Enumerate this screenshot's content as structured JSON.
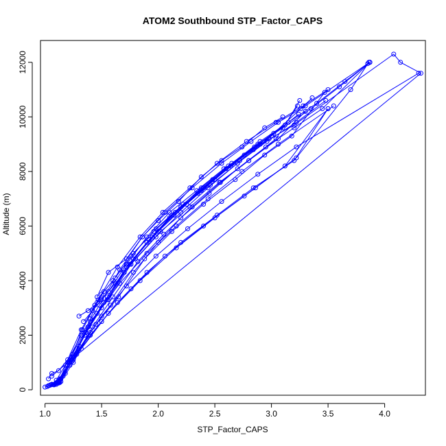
{
  "chart_data": {
    "type": "line",
    "title": "ATOM2 Southbound STP_Factor_CAPS",
    "xlabel": "STP_Factor_CAPS",
    "ylabel": "Altitude (m)",
    "xlim": [
      0.96,
      4.36
    ],
    "ylim": [
      -200,
      12800
    ],
    "x_ticks": [
      1.0,
      1.5,
      2.0,
      2.5,
      3.0,
      3.5,
      4.0
    ],
    "x_tick_labels": [
      "1.0",
      "1.5",
      "2.0",
      "2.5",
      "3.0",
      "3.5",
      "4.0"
    ],
    "y_ticks": [
      0,
      2000,
      4000,
      6000,
      8000,
      10000,
      12000
    ],
    "y_tick_labels": [
      "0",
      "2000",
      "4000",
      "6000",
      "8000",
      "10000",
      "12000"
    ],
    "grid": false,
    "legend": "none",
    "color": "#0000ff",
    "marker": "open-circle",
    "series": [
      {
        "x": [
          1.0,
          1.05,
          1.12,
          1.2,
          1.35,
          1.5,
          1.7,
          1.9,
          2.1,
          2.35,
          2.6,
          2.85,
          3.1,
          3.35,
          3.6,
          3.87
        ],
        "y": [
          100,
          180,
          300,
          900,
          2000,
          3000,
          4300,
          5400,
          6300,
          7200,
          8100,
          8900,
          9600,
          10300,
          11100,
          12000
        ]
      },
      {
        "x": [
          1.03,
          1.08,
          1.13,
          1.23,
          1.38,
          1.55,
          1.75,
          1.95,
          2.15,
          2.4,
          2.65,
          2.9,
          3.15,
          3.4,
          3.65,
          3.87
        ],
        "y": [
          150,
          200,
          400,
          1100,
          2300,
          3300,
          4600,
          5600,
          6500,
          7400,
          8300,
          9100,
          9800,
          10500,
          11300,
          12000
        ]
      },
      {
        "x": [
          1.02,
          1.06,
          1.1,
          1.18,
          1.32,
          1.48,
          1.66,
          1.86,
          2.06,
          2.3,
          2.56,
          2.82,
          3.06,
          3.3,
          3.85
        ],
        "y": [
          120,
          200,
          350,
          900,
          2000,
          3100,
          4400,
          5600,
          6500,
          7400,
          8300,
          9100,
          9800,
          10400,
          11950
        ]
      },
      {
        "x": [
          1.08,
          1.11,
          1.14,
          1.25,
          1.4,
          1.58,
          1.78,
          2.0,
          2.2,
          2.45,
          2.7,
          2.95,
          3.2,
          3.45,
          3.87
        ],
        "y": [
          200,
          260,
          300,
          1000,
          2100,
          3100,
          4300,
          5400,
          6300,
          7200,
          8100,
          8900,
          9600,
          10300,
          12000
        ]
      },
      {
        "x": [
          1.05,
          1.09,
          1.13,
          1.21,
          1.33,
          1.47,
          1.64,
          1.84,
          2.04,
          2.28,
          2.52,
          2.78,
          3.04,
          3.28,
          3.5
        ],
        "y": [
          180,
          220,
          350,
          1000,
          2200,
          3300,
          4500,
          5600,
          6500,
          7400,
          8300,
          9100,
          9800,
          10400,
          11000
        ]
      },
      {
        "x": [
          1.06,
          1.12,
          1.22,
          1.38,
          1.55,
          1.78,
          2.0,
          2.25,
          2.5,
          2.76,
          3.02,
          3.26,
          3.36
        ],
        "y": [
          200,
          250,
          1000,
          2300,
          3400,
          4800,
          5800,
          6800,
          7700,
          8600,
          9400,
          10300,
          10700
        ]
      },
      {
        "x": [
          1.04,
          1.1,
          1.2,
          1.36,
          1.52,
          1.72,
          1.92,
          2.12,
          2.38,
          2.62,
          2.88,
          3.12,
          3.25
        ],
        "y": [
          160,
          240,
          900,
          2100,
          3200,
          4500,
          5500,
          6400,
          7400,
          8200,
          9000,
          9700,
          10600
        ]
      },
      {
        "x": [
          1.09,
          1.13,
          1.24,
          1.42,
          1.6,
          1.82,
          2.05,
          2.3,
          2.55,
          2.8,
          3.04,
          3.23
        ],
        "y": [
          220,
          260,
          1050,
          2300,
          3400,
          4700,
          5700,
          6700,
          7600,
          8400,
          9200,
          10400
        ]
      },
      {
        "x": [
          1.07,
          1.12,
          1.25,
          1.45,
          1.65,
          1.88,
          2.12,
          2.4,
          2.68,
          2.94,
          3.18,
          3.47
        ],
        "y": [
          190,
          280,
          1100,
          2400,
          3400,
          4800,
          5800,
          6800,
          7700,
          8600,
          9300,
          10900
        ]
      },
      {
        "x": [
          1.1,
          1.12,
          1.22,
          1.36,
          1.52,
          1.72,
          1.92,
          2.14,
          2.38,
          2.64,
          2.9,
          3.2,
          4.08,
          4.14,
          4.32,
          1.2,
          1.3
        ],
        "y": [
          200,
          250,
          900,
          2100,
          3200,
          4500,
          5500,
          6400,
          7300,
          8200,
          9000,
          9700,
          12300,
          12000,
          11600,
          1000,
          1600
        ]
      },
      {
        "x": [
          1.12,
          1.18,
          1.3,
          1.46,
          1.66,
          1.9,
          2.16,
          2.44,
          2.74,
          3.06,
          3.55
        ],
        "y": [
          250,
          600,
          1600,
          2800,
          3900,
          5000,
          6000,
          7000,
          8000,
          9000,
          10400
        ]
      },
      {
        "x": [
          1.08,
          1.14,
          1.28,
          1.5,
          1.76,
          2.06,
          2.4,
          2.76,
          3.12,
          3.5
        ],
        "y": [
          180,
          400,
          1300,
          2500,
          3700,
          4900,
          6000,
          7100,
          8200,
          10300
        ]
      },
      {
        "x": [
          1.13,
          1.16,
          1.3,
          1.5,
          1.72,
          1.98,
          2.26,
          2.56,
          2.88,
          3.22,
          4.3
        ],
        "y": [
          300,
          500,
          1500,
          2700,
          3800,
          4900,
          5900,
          6900,
          7900,
          8900,
          11600
        ]
      },
      {
        "x": [
          1.06,
          1.2,
          1.4,
          1.64,
          1.9,
          2.2,
          2.52,
          2.84,
          3.2,
          3.5
        ],
        "y": [
          500,
          1000,
          2000,
          3200,
          4300,
          5400,
          6400,
          7400,
          8400,
          10300
        ]
      },
      {
        "x": [
          1.03,
          1.06,
          1.12,
          1.24,
          1.4,
          1.56,
          1.76,
          1.98,
          2.2,
          2.44,
          2.7,
          2.96,
          3.22,
          3.48
        ],
        "y": [
          400,
          600,
          700,
          1300,
          2500,
          3300,
          4600,
          5600,
          6500,
          7400,
          8300,
          9100,
          9800,
          10600
        ]
      },
      {
        "x": [
          1.1,
          1.14,
          1.32,
          1.56,
          1.84,
          2.16,
          2.5,
          2.86,
          3.22,
          3.7,
          3.86
        ],
        "y": [
          260,
          400,
          1500,
          2800,
          4000,
          5200,
          6300,
          7400,
          8500,
          11000,
          12000
        ]
      },
      {
        "x": [
          1.13,
          1.2,
          1.32,
          1.44,
          1.56,
          1.72,
          1.9,
          2.1,
          2.34,
          2.58,
          2.84
        ],
        "y": [
          350,
          1100,
          2200,
          3100,
          3600,
          4600,
          5600,
          6500,
          7300,
          8100,
          8800
        ]
      },
      {
        "x": [
          1.46,
          1.56,
          1.72,
          1.86,
          2.0,
          2.18,
          2.38,
          2.56,
          2.74,
          2.94,
          3.1
        ],
        "y": [
          3400,
          4300,
          4800,
          5600,
          6200,
          6900,
          7800,
          8400,
          8900,
          9600,
          10000
        ]
      },
      {
        "x": [
          1.3,
          1.38,
          1.44,
          1.5,
          1.6,
          1.76,
          1.96,
          2.2,
          2.46,
          2.7,
          2.98
        ],
        "y": [
          2700,
          2900,
          3100,
          3500,
          4000,
          4900,
          5800,
          6700,
          7500,
          8300,
          9200
        ]
      },
      {
        "x": [
          1.4,
          1.46,
          1.52,
          1.62,
          1.78,
          1.98,
          2.22,
          2.48,
          2.72,
          3.0,
          3.24
        ],
        "y": [
          2600,
          3200,
          3600,
          4100,
          5000,
          5900,
          6800,
          7700,
          8400,
          9300,
          10100
        ]
      },
      {
        "x": [
          1.34,
          1.42,
          1.5,
          1.62,
          1.8,
          2.02,
          2.28,
          2.54,
          2.8,
          3.06,
          3.3
        ],
        "y": [
          2500,
          2900,
          3300,
          3900,
          4800,
          5800,
          6700,
          7600,
          8400,
          9200,
          10200
        ]
      }
    ]
  }
}
